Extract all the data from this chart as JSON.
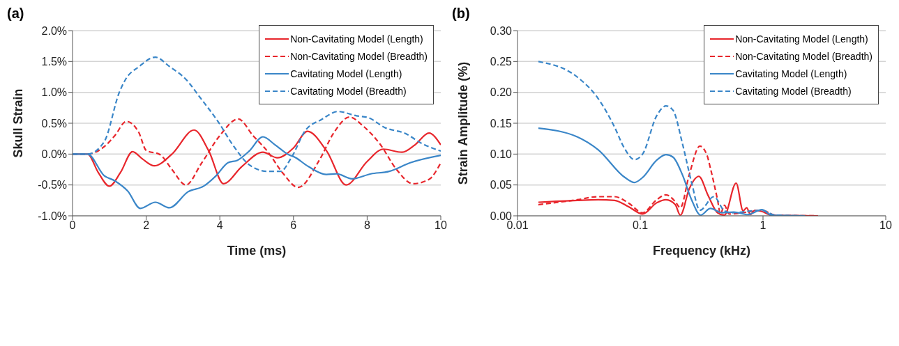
{
  "chart_data": [
    {
      "type": "line",
      "title": "(a)",
      "xlabel": "Time (ms)",
      "ylabel": "Skull Strain",
      "xlim": [
        0,
        10
      ],
      "xticks": [
        0,
        2,
        4,
        6,
        8,
        10
      ],
      "ylim": [
        -1,
        2
      ],
      "yticks": [
        {
          "value": -1,
          "label": "-1.0%"
        },
        {
          "value": -0.5,
          "label": "-0.5%"
        },
        {
          "value": 0,
          "label": "0.0%"
        },
        {
          "value": 0.5,
          "label": "0.5%"
        },
        {
          "value": 1,
          "label": "1.0%"
        },
        {
          "value": 1.5,
          "label": "1.5%"
        },
        {
          "value": 2,
          "label": "2.0%"
        }
      ],
      "grid": "y",
      "legend": "top right",
      "marker": "none",
      "series": [
        {
          "name": "Non-Cavitating Model (Length)",
          "color": "#e8262c",
          "line_style": "solid",
          "x": [
            0,
            0.41,
            0.7,
            1.0,
            1.3,
            1.63,
            1.9,
            2.22,
            2.7,
            3.3,
            3.7,
            4.1,
            4.6,
            5.17,
            5.56,
            6.0,
            6.38,
            6.9,
            7.43,
            8.0,
            8.44,
            8.95,
            9.3,
            9.68,
            10
          ],
          "values": [
            0,
            0,
            -0.3,
            -0.52,
            -0.3,
            0.04,
            -0.08,
            -0.19,
            0,
            0.39,
            0.05,
            -0.48,
            -0.2,
            0.03,
            -0.06,
            0.1,
            0.37,
            0.05,
            -0.5,
            -0.12,
            0.08,
            0.03,
            0.15,
            0.34,
            0.15
          ]
        },
        {
          "name": "Non-Cavitating Model (Breadth)",
          "color": "#e8262c",
          "line_style": "dashed",
          "x": [
            0,
            0.41,
            0.86,
            1.15,
            1.46,
            1.8,
            2.0,
            2.38,
            2.7,
            3.08,
            3.5,
            4.0,
            4.5,
            4.9,
            5.3,
            5.7,
            6.13,
            6.7,
            7.1,
            7.52,
            7.9,
            8.34,
            8.8,
            9.24,
            9.68,
            10
          ],
          "values": [
            0,
            0,
            0.12,
            0.3,
            0.53,
            0.35,
            0.06,
            -0.01,
            -0.25,
            -0.5,
            -0.15,
            0.3,
            0.57,
            0.3,
            0.04,
            -0.3,
            -0.54,
            -0.1,
            0.35,
            0.6,
            0.45,
            0.17,
            -0.25,
            -0.48,
            -0.41,
            -0.14
          ]
        },
        {
          "name": "Cavitating Model (Length)",
          "color": "#3a86c8",
          "line_style": "solid",
          "x": [
            0,
            0.41,
            0.86,
            1.14,
            1.5,
            1.84,
            2.25,
            2.63,
            3.14,
            3.56,
            3.9,
            4.22,
            4.48,
            4.8,
            5.17,
            5.5,
            5.9,
            6.0,
            6.4,
            6.89,
            7.17,
            7.59,
            8.1,
            8.6,
            9.17,
            10
          ],
          "values": [
            0,
            0,
            -0.35,
            -0.43,
            -0.6,
            -0.88,
            -0.78,
            -0.87,
            -0.61,
            -0.52,
            -0.35,
            -0.14,
            -0.1,
            0.05,
            0.28,
            0.15,
            -0.02,
            -0.04,
            -0.2,
            -0.33,
            -0.32,
            -0.4,
            -0.32,
            -0.28,
            -0.14,
            -0.02
          ]
        },
        {
          "name": "Cavitating Model (Breadth)",
          "color": "#3a86c8",
          "line_style": "dashed",
          "x": [
            0,
            0.41,
            0.86,
            1.27,
            1.43,
            1.81,
            2.25,
            2.63,
            3.08,
            3.46,
            3.97,
            4.35,
            4.79,
            4.92,
            5.3,
            5.65,
            5.94,
            6.32,
            6.76,
            7.21,
            7.71,
            8.03,
            8.48,
            9.05,
            9.49,
            10
          ],
          "values": [
            0,
            0,
            0.2,
            1.0,
            1.2,
            1.42,
            1.57,
            1.42,
            1.21,
            0.92,
            0.51,
            0.15,
            -0.17,
            -0.22,
            -0.28,
            -0.28,
            -0.06,
            0.38,
            0.56,
            0.69,
            0.62,
            0.59,
            0.43,
            0.33,
            0.17,
            0.05
          ]
        }
      ]
    },
    {
      "type": "line",
      "title": "(b)",
      "xlabel": "Frequency (kHz)",
      "ylabel": "Strain Amplitude (%)",
      "log": "x",
      "xlim": [
        0.01,
        10
      ],
      "xticks": [
        0.01,
        0.1,
        1,
        10
      ],
      "ylim": [
        0,
        0.3
      ],
      "yticks": [
        {
          "value": 0,
          "label": "0.00"
        },
        {
          "value": 0.05,
          "label": "0.05"
        },
        {
          "value": 0.1,
          "label": "0.10"
        },
        {
          "value": 0.15,
          "label": "0.15"
        },
        {
          "value": 0.2,
          "label": "0.20"
        },
        {
          "value": 0.25,
          "label": "0.25"
        },
        {
          "value": 0.3,
          "label": "0.30"
        }
      ],
      "grid": "y",
      "legend": "top right",
      "marker": "none",
      "series": [
        {
          "name": "Non-Cavitating Model (Length)",
          "color": "#e8262c",
          "line_style": "solid",
          "x": [
            0.0148,
            0.0306,
            0.0454,
            0.0617,
            0.08,
            0.1045,
            0.136,
            0.162,
            0.193,
            0.212,
            0.251,
            0.3,
            0.357,
            0.426,
            0.485,
            0.604,
            0.689,
            0.736,
            0.79,
            0.858,
            0.98,
            1.17,
            2.8
          ],
          "values": [
            0.022,
            0.025,
            0.026,
            0.025,
            0.015,
            0.003,
            0.021,
            0.026,
            0.018,
            0.001,
            0.044,
            0.064,
            0.033,
            0.005,
            0.001,
            0.053,
            0.008,
            0.013,
            0.002,
            0.009,
            0.007,
            0.001,
            0
          ]
        },
        {
          "name": "Non-Cavitating Model (Breadth)",
          "color": "#e8262c",
          "line_style": "dashed",
          "x": [
            0.0148,
            0.0306,
            0.0454,
            0.0617,
            0.08,
            0.1045,
            0.136,
            0.162,
            0.193,
            0.212,
            0.251,
            0.306,
            0.35,
            0.373,
            0.426,
            0.45,
            0.485,
            0.53,
            0.75,
            0.98,
            1.26,
            2.8
          ],
          "values": [
            0.018,
            0.026,
            0.031,
            0.031,
            0.021,
            0.005,
            0.026,
            0.034,
            0.023,
            0.013,
            0.067,
            0.113,
            0.098,
            0.077,
            0.026,
            0.003,
            0.017,
            0.003,
            0.006,
            0.009,
            0.001,
            0
          ]
        },
        {
          "name": "Cavitating Model (Length)",
          "color": "#3a86c8",
          "line_style": "solid",
          "x": [
            0.0148,
            0.0306,
            0.0454,
            0.0751,
            0.0896,
            0.1045,
            0.136,
            0.162,
            0.185,
            0.22,
            0.262,
            0.31,
            0.373,
            0.464,
            0.578,
            0.75,
            0.98,
            1.17,
            2.2
          ],
          "values": [
            0.142,
            0.128,
            0.107,
            0.062,
            0.054,
            0.062,
            0.09,
            0.099,
            0.095,
            0.067,
            0.026,
            0.001,
            0.012,
            0.005,
            0.006,
            0.002,
            0.01,
            0.001,
            0
          ]
        },
        {
          "name": "Cavitating Model (Breadth)",
          "color": "#3a86c8",
          "line_style": "dashed",
          "x": [
            0.0148,
            0.0306,
            0.0454,
            0.0617,
            0.0736,
            0.0896,
            0.1045,
            0.136,
            0.162,
            0.185,
            0.22,
            0.262,
            0.306,
            0.398,
            0.485,
            0.553,
            0.98,
            1.26,
            2.2
          ],
          "values": [
            0.25,
            0.225,
            0.19,
            0.144,
            0.111,
            0.091,
            0.1,
            0.162,
            0.178,
            0.171,
            0.118,
            0.054,
            0.009,
            0.031,
            0.008,
            0.005,
            0.009,
            0.001,
            0
          ]
        }
      ]
    }
  ]
}
